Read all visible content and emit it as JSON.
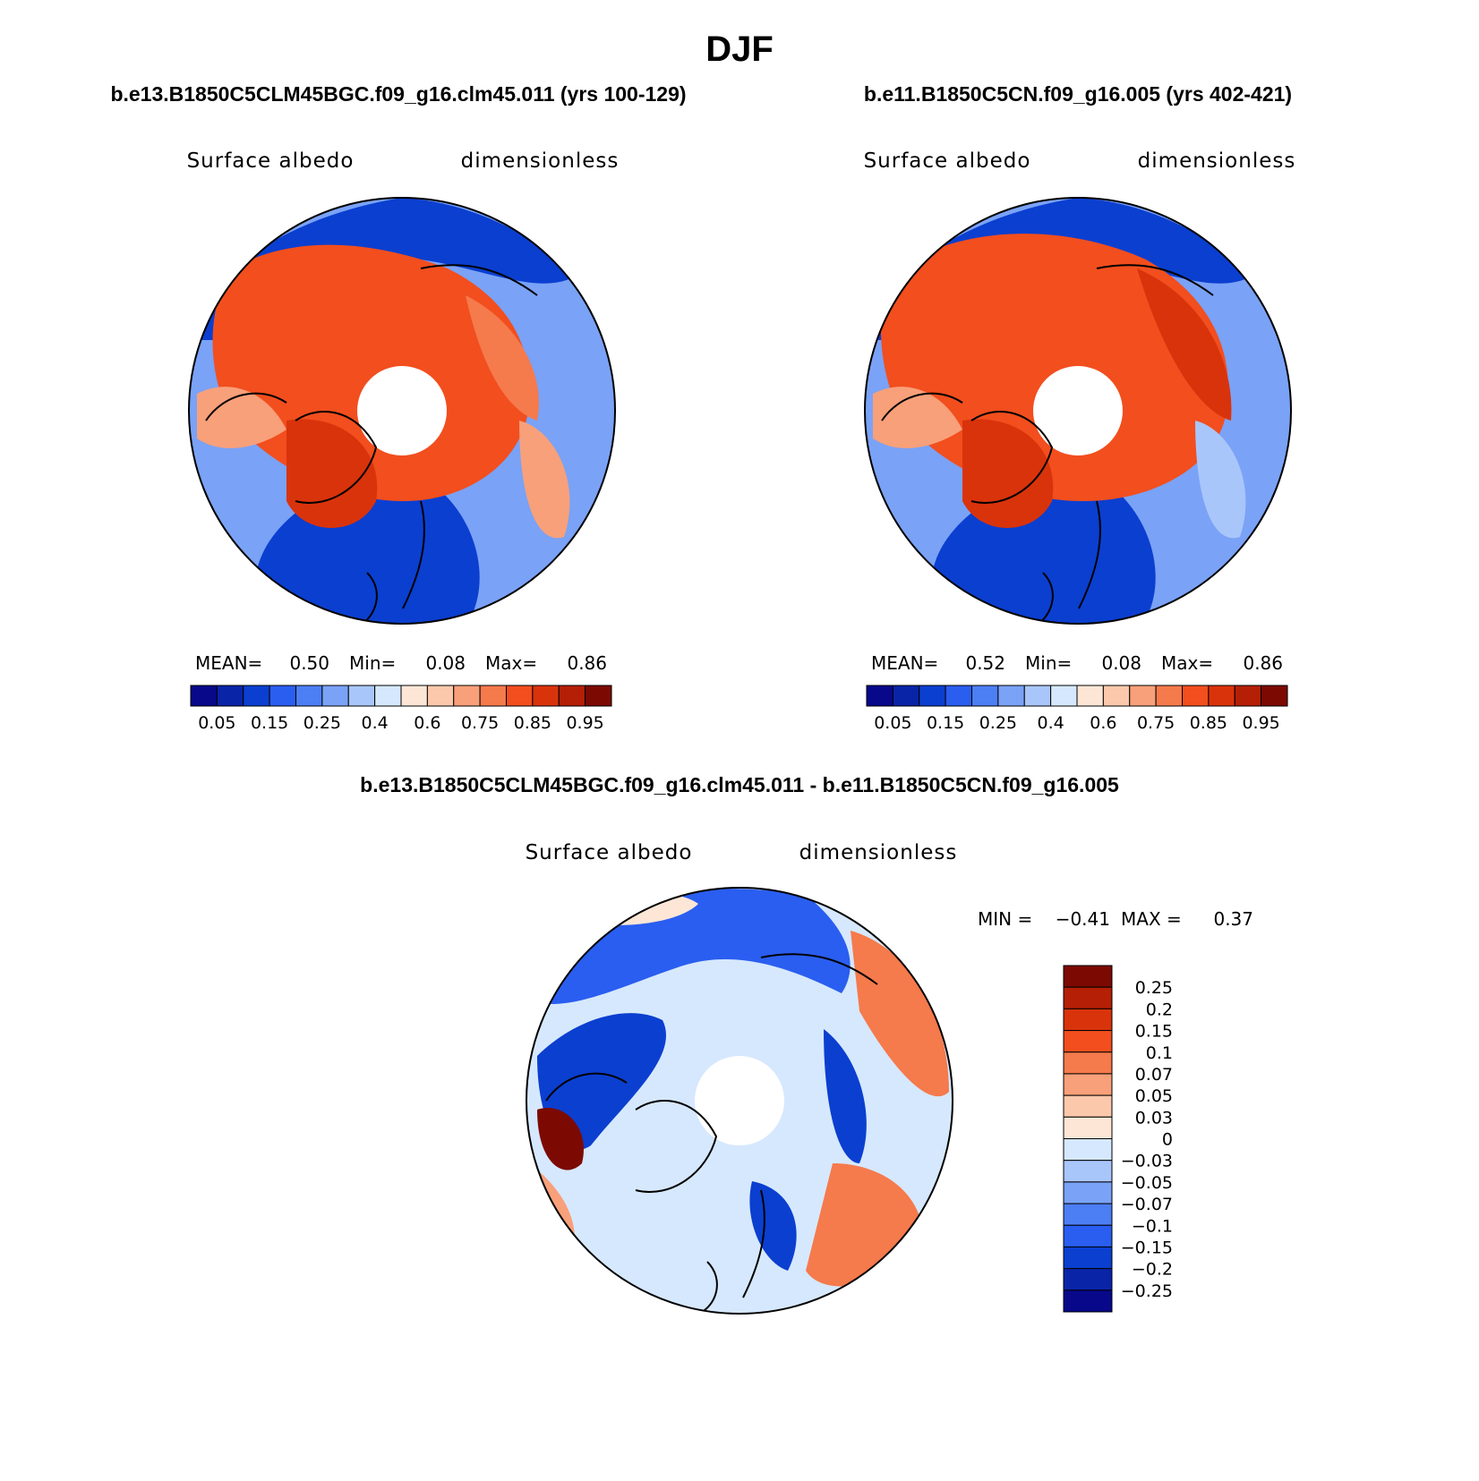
{
  "figure": {
    "title": "DJF",
    "base_map": {
      "pole_hole": "#ffffff",
      "coast_color": "#000000"
    }
  },
  "panels": [
    {
      "id": "case",
      "title": "b.e13.B1850C5CLM45BGC.f09_g16.clm45.011 (yrs 100-129)",
      "left_label": "Surface albedo",
      "right_label": "dimensionless",
      "stats": {
        "mean_label": "MEAN=",
        "mean": "0.50",
        "min_label": "Min=",
        "min": "0.08",
        "max_label": "Max=",
        "max": "0.86"
      },
      "colorbar": {
        "labels": [
          "0.05",
          "0.15",
          "0.25",
          "0.4",
          "0.6",
          "0.75",
          "0.85",
          "0.95"
        ],
        "colors": [
          "#08088a",
          "#0a24a8",
          "#0b3fd0",
          "#2a5ef0",
          "#4c7ef4",
          "#7aa2f6",
          "#a9c6fb",
          "#d6e8fd",
          "#fde6d6",
          "#fbc8ab",
          "#f8a07a",
          "#f57a4c",
          "#f24e1e",
          "#d9330c",
          "#b51f06",
          "#7c0a03"
        ]
      }
    },
    {
      "id": "control",
      "title": "b.e11.B1850C5CN.f09_g16.005 (yrs 402-421)",
      "left_label": "Surface albedo",
      "right_label": "dimensionless",
      "stats": {
        "mean_label": "MEAN=",
        "mean": "0.52",
        "min_label": "Min=",
        "min": "0.08",
        "max_label": "Max=",
        "max": "0.86"
      },
      "colorbar": {
        "labels": [
          "0.05",
          "0.15",
          "0.25",
          "0.4",
          "0.6",
          "0.75",
          "0.85",
          "0.95"
        ],
        "colors": [
          "#08088a",
          "#0a24a8",
          "#0b3fd0",
          "#2a5ef0",
          "#4c7ef4",
          "#7aa2f6",
          "#a9c6fb",
          "#d6e8fd",
          "#fde6d6",
          "#fbc8ab",
          "#f8a07a",
          "#f57a4c",
          "#f24e1e",
          "#d9330c",
          "#b51f06",
          "#7c0a03"
        ]
      }
    },
    {
      "id": "difference",
      "title": "b.e13.B1850C5CLM45BGC.f09_g16.clm45.011 - b.e11.B1850C5CN.f09_g16.005",
      "left_label": "Surface albedo",
      "right_label": "dimensionless",
      "stats": {
        "min_label": "MIN =",
        "min": "−0.41",
        "max_label": "MAX =",
        "max": "0.37"
      },
      "colorbar": {
        "labels": [
          "0.25",
          "0.2",
          "0.15",
          "0.1",
          "0.07",
          "0.05",
          "0.03",
          "0",
          "−0.03",
          "−0.05",
          "−0.07",
          "−0.1",
          "−0.15",
          "−0.2",
          "−0.25"
        ],
        "colors": [
          "#7c0a03",
          "#b51f06",
          "#d9330c",
          "#f24e1e",
          "#f57a4c",
          "#f8a07a",
          "#fbc8ab",
          "#fde6d6",
          "#d6e8fd",
          "#a9c6fb",
          "#7aa2f6",
          "#4c7ef4",
          "#2a5ef0",
          "#0b3fd0",
          "#0a24a8",
          "#08088a"
        ]
      }
    }
  ]
}
